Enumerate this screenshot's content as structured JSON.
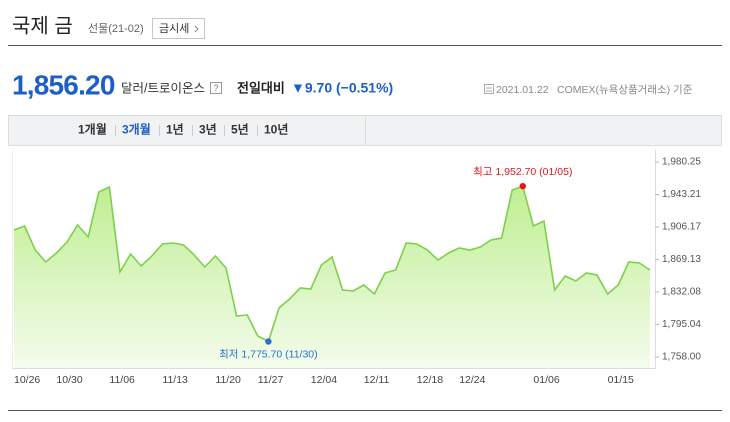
{
  "header": {
    "title": "국제 금",
    "subtitle": "선물(21-02)",
    "button": "금시세"
  },
  "quote": {
    "price": "1,856.20",
    "unit": "달러/트로이온스",
    "help": "?",
    "change_label": "전일대비",
    "change": "▼9.70 (−0.51%)",
    "date": "2021.01.22",
    "source": "COMEX(뉴욕상품거래소) 기준"
  },
  "tabs": [
    "1개월",
    "3개월",
    "1년",
    "3년",
    "5년",
    "10년"
  ],
  "selected_tab": "3개월",
  "chart_data": {
    "type": "area",
    "color": "#7ed04a",
    "grid": false,
    "categories": [
      "10/26",
      null,
      null,
      null,
      "10/30",
      null,
      null,
      null,
      null,
      "11/06",
      null,
      null,
      null,
      null,
      "11/13",
      null,
      null,
      null,
      null,
      "11/20",
      null,
      null,
      null,
      "11/27",
      null,
      null,
      null,
      null,
      "12/04",
      null,
      null,
      null,
      null,
      "12/11",
      null,
      null,
      null,
      null,
      "12/18",
      null,
      null,
      null,
      "12/24",
      null,
      null,
      null,
      null,
      null,
      null,
      "01/06",
      null,
      null,
      null,
      null,
      null,
      null,
      "01/15",
      null,
      null,
      null,
      null
    ],
    "values": [
      1902.7,
      1907.3,
      1880.0,
      1866.3,
      1876.5,
      1889.1,
      1908.4,
      1894.8,
      1946.1,
      1951.7,
      1854.9,
      1875.4,
      1861.7,
      1873.1,
      1886.8,
      1887.9,
      1885.6,
      1874.3,
      1860.6,
      1873.1,
      1859.4,
      1804.7,
      1805.9,
      1781.9,
      1775.7,
      1813.8,
      1824.1,
      1836.6,
      1835.5,
      1862.9,
      1872.0,
      1834.4,
      1833.2,
      1840.1,
      1829.8,
      1853.7,
      1857.2,
      1887.9,
      1886.8,
      1880.0,
      1868.6,
      1876.5,
      1882.2,
      1880.0,
      1883.4,
      1891.3,
      1893.6,
      1948.3,
      1952.7,
      1907.3,
      1913.0,
      1834.4,
      1850.3,
      1844.6,
      1853.7,
      1851.5,
      1829.8,
      1840.1,
      1866.3,
      1865.1,
      1857.2
    ],
    "ylim": [
      1758,
      1980.25
    ],
    "yticks": [
      {
        "value": 1758,
        "label": "1,758.00"
      },
      {
        "value": 1795.04,
        "label": "1,795.04"
      },
      {
        "value": 1832.08,
        "label": "1,832.08"
      },
      {
        "value": 1869.13,
        "label": "1,869.13"
      },
      {
        "value": 1906.17,
        "label": "1,906.17"
      },
      {
        "value": 1943.21,
        "label": "1,943.21"
      },
      {
        "value": 1980.25,
        "label": "1,980.25"
      }
    ],
    "annotations": {
      "high": {
        "text": "최고 1,952.70 (01/05)",
        "color": "#e8141b"
      },
      "low": {
        "text": "최저 1,775.70 (11/30)",
        "color": "#2a6fd6"
      }
    }
  }
}
